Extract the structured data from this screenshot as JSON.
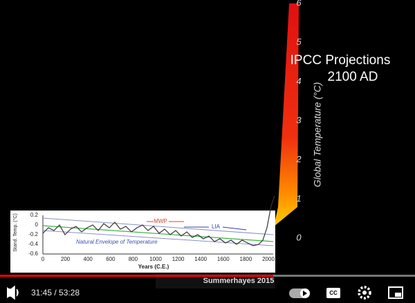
{
  "video": {
    "right_axis": {
      "label": "Global Temperature (°C)",
      "ticks": [
        "6",
        "5",
        "4",
        "3",
        "2",
        "1",
        "0"
      ]
    },
    "annotation": {
      "line1": "IPCC Projections",
      "line2": "2100 AD"
    },
    "inset": {
      "y_label": "Stand. Temp. (°C)",
      "yticks": [
        "0.2",
        "0",
        "-0.2",
        "-0.4",
        "-0.6"
      ],
      "xticks": [
        "0",
        "200",
        "400",
        "600",
        "800",
        "1000",
        "1200",
        "1400",
        "1600",
        "1800",
        "2000"
      ],
      "x_label": "Years (C.E.)",
      "mwp": "MWP",
      "lia": "LIA",
      "envelope": "Natural Envelope of Temperature"
    },
    "credit": "Summerhayes 2015"
  },
  "player": {
    "time": "31:45 / 53:28"
  }
}
